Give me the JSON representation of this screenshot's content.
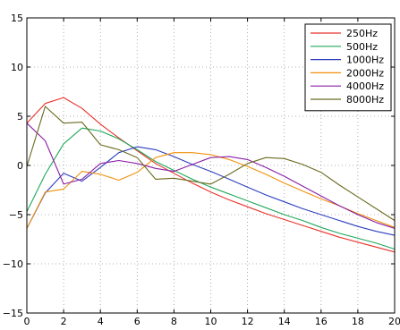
{
  "chart_data": {
    "type": "line",
    "title": "",
    "xlabel": "",
    "ylabel": "",
    "xlim": [
      0,
      20
    ],
    "ylim": [
      -15,
      15
    ],
    "xticks": [
      0,
      2,
      4,
      6,
      8,
      10,
      12,
      14,
      16,
      18,
      20
    ],
    "yticks": [
      -15,
      -10,
      -5,
      0,
      5,
      10,
      15
    ],
    "xtick_labels": [
      "0",
      "2",
      "4",
      "6",
      "8",
      "10",
      "12",
      "14",
      "16",
      "18",
      "20"
    ],
    "ytick_labels": [
      "−15",
      "−10",
      "−5",
      "0",
      "5",
      "10",
      "15"
    ],
    "grid": true,
    "legend_position": "top-right",
    "series": [
      {
        "name": "250Hz",
        "color": "#e8312a",
        "x": [
          0,
          1,
          2,
          3,
          4,
          5,
          6,
          7,
          8,
          9,
          10,
          11,
          12,
          13,
          14,
          15,
          16,
          17,
          18,
          19,
          20
        ],
        "y": [
          4.3,
          6.3,
          6.9,
          5.8,
          4.2,
          2.8,
          1.5,
          0.2,
          -0.8,
          -1.8,
          -2.7,
          -3.5,
          -4.2,
          -4.9,
          -5.5,
          -6.1,
          -6.7,
          -7.3,
          -7.8,
          -8.3,
          -8.8
        ]
      },
      {
        "name": "500Hz",
        "color": "#1fa85a",
        "x": [
          0,
          1,
          2,
          3,
          4,
          5,
          6,
          7,
          8,
          9,
          10,
          11,
          12,
          13,
          14,
          15,
          16,
          17,
          18,
          19,
          20
        ],
        "y": [
          -4.7,
          -0.9,
          2.2,
          3.8,
          3.5,
          2.7,
          1.6,
          0.4,
          -0.5,
          -1.4,
          -2.2,
          -2.9,
          -3.6,
          -4.3,
          -5.0,
          -5.6,
          -6.3,
          -6.9,
          -7.4,
          -7.9,
          -8.5
        ]
      },
      {
        "name": "1000Hz",
        "color": "#2b3fbf",
        "x": [
          0,
          1,
          2,
          3,
          4,
          5,
          6,
          7,
          8,
          9,
          10,
          11,
          12,
          13,
          14,
          15,
          16,
          17,
          18,
          19,
          20
        ],
        "y": [
          -6.4,
          -2.8,
          -0.8,
          -1.6,
          -0.2,
          1.3,
          1.9,
          1.6,
          0.9,
          0.1,
          -0.6,
          -1.4,
          -2.2,
          -3.0,
          -3.7,
          -4.4,
          -5.0,
          -5.6,
          -6.2,
          -6.7,
          -7.1
        ]
      },
      {
        "name": "2000Hz",
        "color": "#f0900a",
        "x": [
          0,
          1,
          2,
          3,
          4,
          5,
          6,
          7,
          8,
          9,
          10,
          11,
          12,
          13,
          14,
          15,
          16,
          17,
          18,
          19,
          20
        ],
        "y": [
          -6.4,
          -2.7,
          -2.4,
          -0.6,
          -0.9,
          -1.5,
          -0.7,
          0.8,
          1.3,
          1.3,
          1.1,
          0.6,
          -0.1,
          -0.9,
          -1.8,
          -2.6,
          -3.4,
          -4.1,
          -4.9,
          -5.6,
          -6.3
        ]
      },
      {
        "name": "4000Hz",
        "color": "#8a1fa8",
        "x": [
          0,
          1,
          2,
          3,
          4,
          5,
          6,
          7,
          8,
          9,
          10,
          11,
          12,
          13,
          14,
          15,
          16,
          17,
          18,
          19,
          20
        ],
        "y": [
          4.3,
          2.5,
          -1.9,
          -1.4,
          0.2,
          0.5,
          0.2,
          -0.3,
          -0.6,
          0.1,
          0.8,
          0.9,
          0.6,
          -0.2,
          -1.1,
          -2.1,
          -3.1,
          -4.1,
          -5.0,
          -5.8,
          -6.4
        ]
      },
      {
        "name": "8000Hz",
        "color": "#6b6b1f",
        "x": [
          0,
          1,
          2,
          3,
          4,
          5,
          6,
          7,
          8,
          9,
          10,
          11,
          12,
          13,
          14,
          15,
          16,
          17,
          18,
          19,
          20
        ],
        "y": [
          -0.1,
          6.0,
          4.3,
          4.4,
          2.1,
          1.6,
          0.8,
          -1.4,
          -1.3,
          -1.6,
          -1.9,
          -0.9,
          0.2,
          0.8,
          0.7,
          0.1,
          -0.7,
          -2.0,
          -3.2,
          -4.4,
          -5.6
        ]
      }
    ]
  }
}
